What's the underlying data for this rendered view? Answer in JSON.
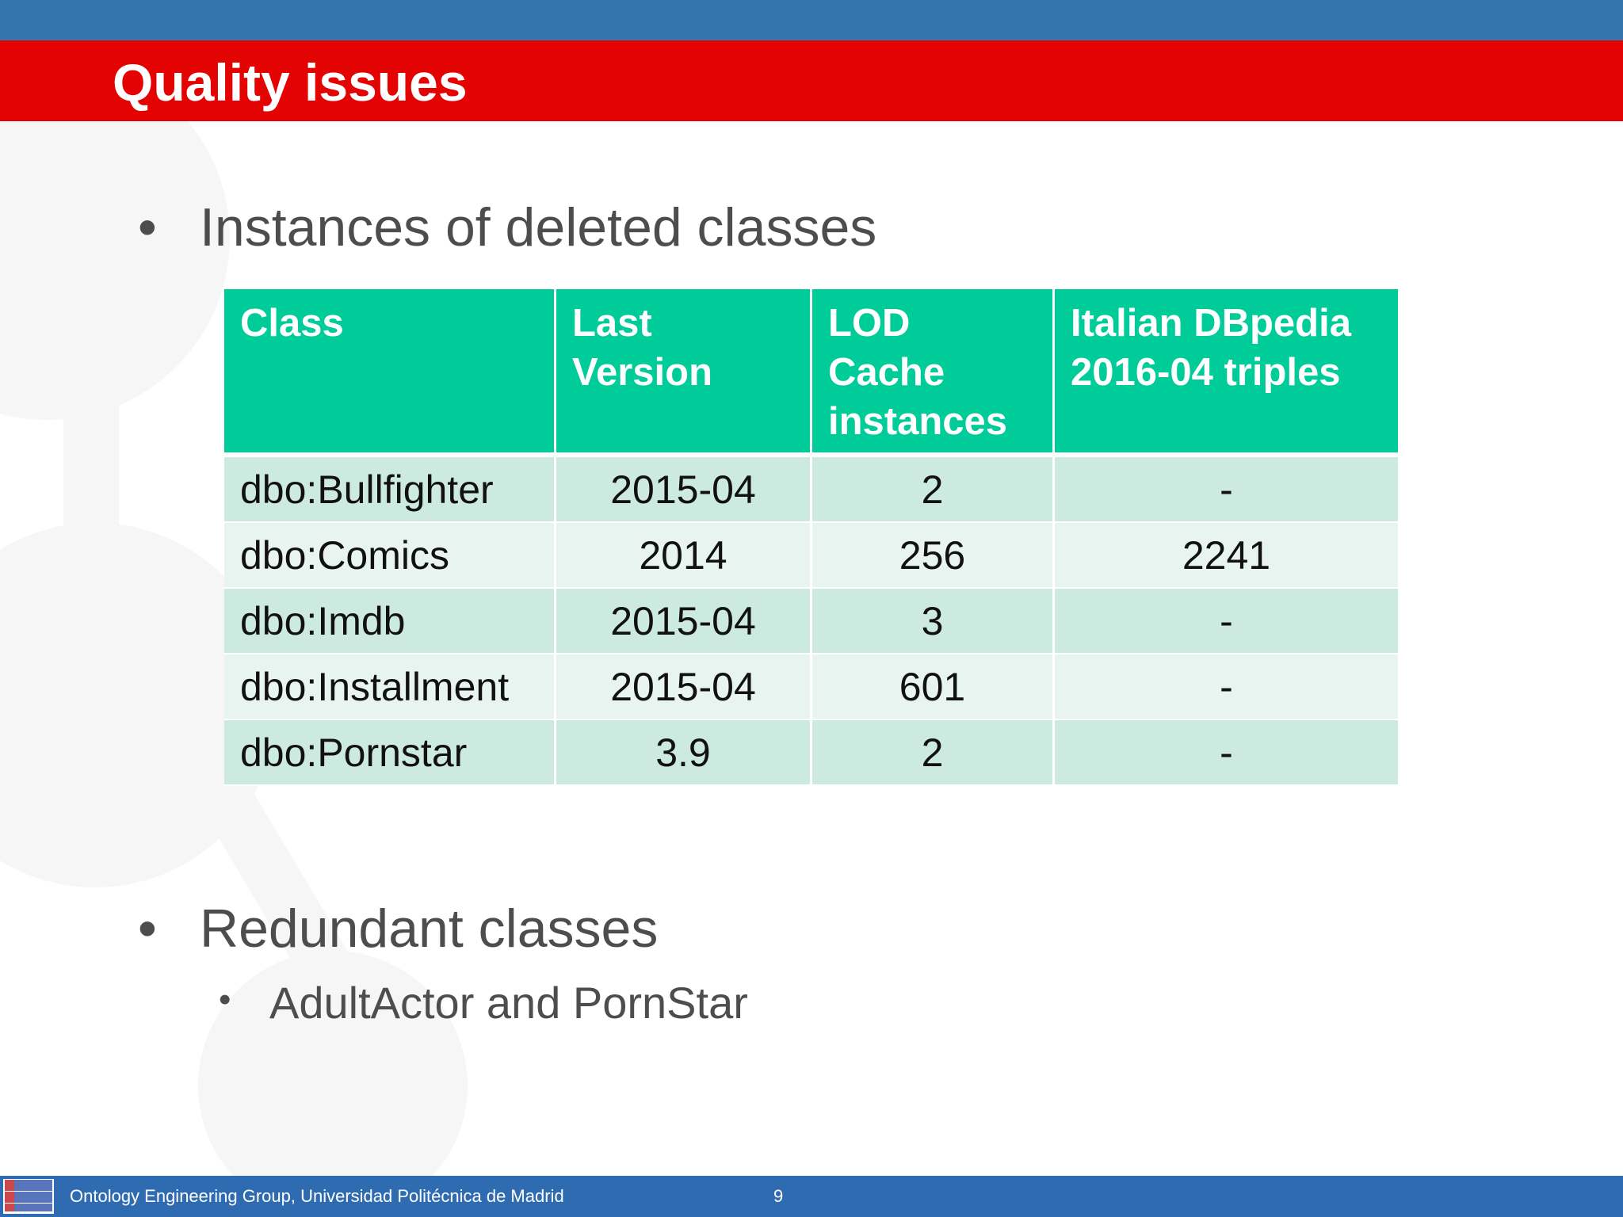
{
  "slide": {
    "title": "Quality issues",
    "bullets": [
      {
        "text": "Instances of deleted classes"
      },
      {
        "text": "Redundant classes",
        "sub": [
          "AdultActor and PornStar"
        ]
      }
    ]
  },
  "table": {
    "headers": [
      "Class",
      "Last Version",
      "LOD Cache instances",
      "Italian DBpedia 2016-04 triples"
    ],
    "rows": [
      [
        "dbo:Bullfighter",
        "2015-04",
        "2",
        "-"
      ],
      [
        "dbo:Comics",
        "2014",
        "256",
        "2241"
      ],
      [
        "dbo:Imdb",
        "2015-04",
        "3",
        "-"
      ],
      [
        "dbo:Installment",
        "2015-04",
        "601",
        "-"
      ],
      [
        "dbo:Pornstar",
        "3.9",
        "2",
        "-"
      ]
    ]
  },
  "footer": {
    "organization": "Ontology Engineering Group, Universidad Politécnica de Madrid",
    "page_number": "9",
    "logo_icon": "oeg-logo-icon"
  },
  "colors": {
    "top_bar": "#3276ad",
    "title_bar": "#e40303",
    "table_header": "#00cc99",
    "row_dark": "#cdeae0",
    "row_light": "#e8f4ef",
    "footer": "#2f6bb0"
  }
}
